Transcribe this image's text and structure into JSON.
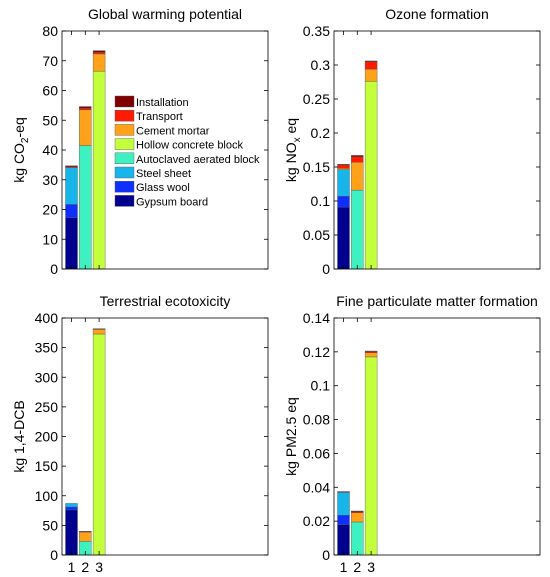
{
  "legend_title": "",
  "chart_data": [
    {
      "type": "bar",
      "stacked": true,
      "title": "Global warming potential",
      "ylabel_parts": [
        "kg CO",
        "2",
        "-eq"
      ],
      "xlabel": "",
      "categories": [
        "1",
        "2",
        "3"
      ],
      "show_x_ticks": false,
      "ylim": [
        0,
        80
      ],
      "yticks": [
        "0",
        "10",
        "20",
        "30",
        "40",
        "50",
        "60",
        "70",
        "80"
      ],
      "ytick_values": [
        0,
        10,
        20,
        30,
        40,
        50,
        60,
        70,
        80
      ],
      "grid": false,
      "legend_position": "center",
      "series": [
        {
          "name": "Gypsum board",
          "color": "#00008f",
          "values": [
            17.2,
            0,
            0
          ]
        },
        {
          "name": "Glass wool",
          "color": "#0f2fff",
          "values": [
            4.5,
            0,
            0
          ]
        },
        {
          "name": "Steel sheet",
          "color": "#18b5ea",
          "values": [
            12.4,
            0,
            0
          ]
        },
        {
          "name": "Autoclaved aerated block",
          "color": "#3df2c0",
          "values": [
            0,
            41.5,
            0
          ]
        },
        {
          "name": "Hollow concrete block",
          "color": "#c3ff3a",
          "values": [
            0,
            0,
            66.5
          ]
        },
        {
          "name": "Cement mortar",
          "color": "#ffa21a",
          "values": [
            0,
            12.0,
            5.8
          ]
        },
        {
          "name": "Transport",
          "color": "#ff1a00",
          "values": [
            0.3,
            0.6,
            0.6
          ]
        },
        {
          "name": "Installation",
          "color": "#800000",
          "values": [
            0.3,
            0.5,
            0.5
          ]
        }
      ]
    },
    {
      "type": "bar",
      "stacked": true,
      "title": "Ozone formation",
      "ylabel_parts": [
        "kg NO",
        "x",
        " eq"
      ],
      "xlabel": "",
      "categories": [
        "1",
        "2",
        "3"
      ],
      "show_x_ticks": false,
      "ylim": [
        0,
        0.35
      ],
      "yticks": [
        "0",
        "0.05",
        "0.1",
        "0.15",
        "0.2",
        "0.25",
        "0.3",
        "0.35"
      ],
      "ytick_values": [
        0,
        0.05,
        0.1,
        0.15,
        0.2,
        0.25,
        0.3,
        0.35
      ],
      "grid": false,
      "series": [
        {
          "name": "Gypsum board",
          "color": "#00008f",
          "values": [
            0.091,
            0,
            0
          ]
        },
        {
          "name": "Glass wool",
          "color": "#0f2fff",
          "values": [
            0.016,
            0,
            0
          ]
        },
        {
          "name": "Steel sheet",
          "color": "#18b5ea",
          "values": [
            0.039,
            0,
            0
          ]
        },
        {
          "name": "Autoclaved aerated block",
          "color": "#3df2c0",
          "values": [
            0,
            0.116,
            0
          ]
        },
        {
          "name": "Hollow concrete block",
          "color": "#c3ff3a",
          "values": [
            0,
            0,
            0.276
          ]
        },
        {
          "name": "Cement mortar",
          "color": "#ffa21a",
          "values": [
            0.002,
            0.041,
            0.018
          ]
        },
        {
          "name": "Transport",
          "color": "#ff1a00",
          "values": [
            0.005,
            0.008,
            0.011
          ]
        },
        {
          "name": "Installation",
          "color": "#800000",
          "values": [
            0.001,
            0.002,
            0.001
          ]
        }
      ]
    },
    {
      "type": "bar",
      "stacked": true,
      "title": "Terrestrial ecotoxicity",
      "ylabel_parts": [
        "kg 1,4-DCB",
        "",
        ""
      ],
      "xlabel": "",
      "categories": [
        "1",
        "2",
        "3"
      ],
      "show_x_ticks": true,
      "ylim": [
        0,
        400
      ],
      "yticks": [
        "0",
        "50",
        "100",
        "150",
        "200",
        "250",
        "300",
        "350",
        "400"
      ],
      "ytick_values": [
        0,
        50,
        100,
        150,
        200,
        250,
        300,
        350,
        400
      ],
      "grid": false,
      "series": [
        {
          "name": "Gypsum board",
          "color": "#00008f",
          "values": [
            76,
            0,
            0
          ]
        },
        {
          "name": "Glass wool",
          "color": "#0f2fff",
          "values": [
            5,
            0,
            0
          ]
        },
        {
          "name": "Steel sheet",
          "color": "#18b5ea",
          "values": [
            6,
            0,
            0
          ]
        },
        {
          "name": "Autoclaved aerated block",
          "color": "#3df2c0",
          "values": [
            0,
            23,
            0
          ]
        },
        {
          "name": "Hollow concrete block",
          "color": "#c3ff3a",
          "values": [
            0,
            0,
            373
          ]
        },
        {
          "name": "Cement mortar",
          "color": "#ffa21a",
          "values": [
            0,
            16,
            8
          ]
        },
        {
          "name": "Transport",
          "color": "#ff1a00",
          "values": [
            0,
            0.5,
            0.5
          ]
        },
        {
          "name": "Installation",
          "color": "#800000",
          "values": [
            0,
            0.5,
            0.5
          ]
        }
      ]
    },
    {
      "type": "bar",
      "stacked": true,
      "title": "Fine particulate matter formation",
      "ylabel_parts": [
        "kg PM2.5 eq",
        "",
        ""
      ],
      "xlabel": "",
      "categories": [
        "1",
        "2",
        "3"
      ],
      "show_x_ticks": true,
      "ylim": [
        0,
        0.14
      ],
      "yticks": [
        "0",
        "0.02",
        "0.04",
        "0.06",
        "0.08",
        "0.1",
        "0.12",
        "0.14"
      ],
      "ytick_values": [
        0,
        0.02,
        0.04,
        0.06,
        0.08,
        0.1,
        0.12,
        0.14
      ],
      "grid": false,
      "series": [
        {
          "name": "Gypsum board",
          "color": "#00008f",
          "values": [
            0.018,
            0,
            0
          ]
        },
        {
          "name": "Glass wool",
          "color": "#0f2fff",
          "values": [
            0.0055,
            0,
            0
          ]
        },
        {
          "name": "Steel sheet",
          "color": "#18b5ea",
          "values": [
            0.0135,
            0,
            0
          ]
        },
        {
          "name": "Autoclaved aerated block",
          "color": "#3df2c0",
          "values": [
            0,
            0.0195,
            0
          ]
        },
        {
          "name": "Hollow concrete block",
          "color": "#c3ff3a",
          "values": [
            0,
            0,
            0.117
          ]
        },
        {
          "name": "Cement mortar",
          "color": "#ffa21a",
          "values": [
            0,
            0.0055,
            0.0025
          ]
        },
        {
          "name": "Transport",
          "color": "#ff1a00",
          "values": [
            0.0003,
            0.0006,
            0.0007
          ]
        },
        {
          "name": "Installation",
          "color": "#800000",
          "values": [
            0.0002,
            0.0004,
            0.0003
          ]
        }
      ]
    }
  ]
}
